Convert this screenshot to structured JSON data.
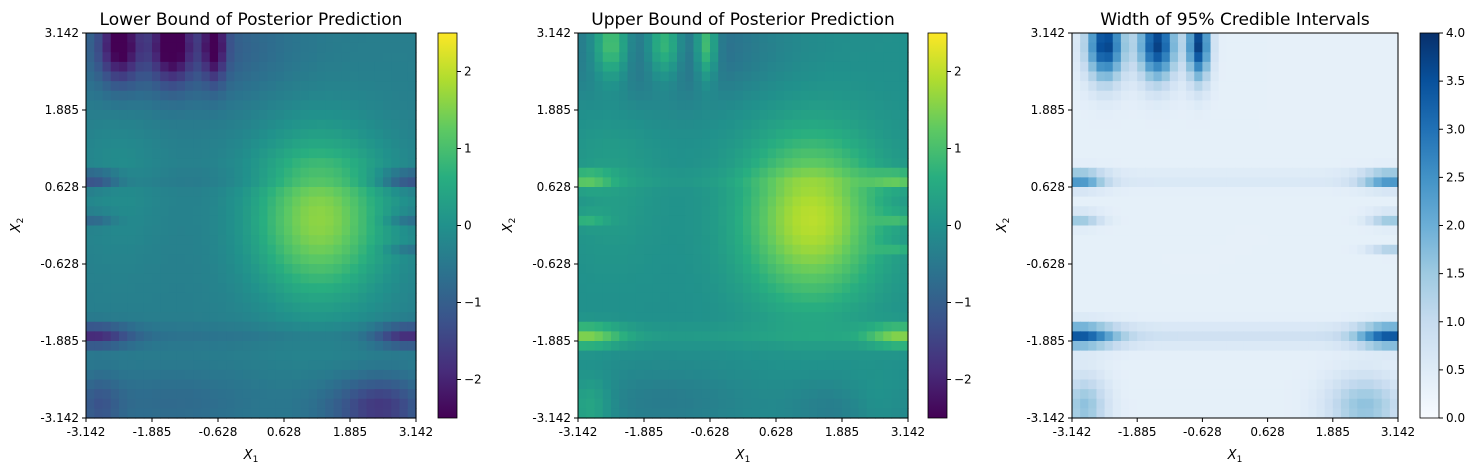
{
  "chart_data": [
    {
      "type": "heatmap",
      "title": "Lower Bound of Posterior Prediction",
      "xlabel": "X",
      "xlabel_sub": "1",
      "ylabel": "X",
      "ylabel_sub": "2",
      "xlim": [
        -3.142,
        3.142
      ],
      "ylim": [
        -3.142,
        3.142
      ],
      "xticks": [
        "-3.142",
        "-1.885",
        "-0.628",
        "0.628",
        "1.885",
        "3.142"
      ],
      "yticks": [
        "-3.142",
        "-1.885",
        "-0.628",
        "0.628",
        "1.885",
        "3.142"
      ],
      "colormap": "viridis",
      "colorbar": {
        "min": -2.5,
        "max": 2.5,
        "ticks": [
          "2",
          "1",
          "0",
          "−1",
          "−2"
        ],
        "tick_values": [
          2,
          1,
          0,
          -1,
          -2
        ]
      },
      "grid_resolution": 40,
      "value_range": [
        -2.5,
        2.5
      ]
    },
    {
      "type": "heatmap",
      "title": "Upper Bound of Posterior Prediction",
      "xlabel": "X",
      "xlabel_sub": "1",
      "ylabel": "X",
      "ylabel_sub": "2",
      "xlim": [
        -3.142,
        3.142
      ],
      "ylim": [
        -3.142,
        3.142
      ],
      "xticks": [
        "-3.142",
        "-1.885",
        "-0.628",
        "0.628",
        "1.885",
        "3.142"
      ],
      "yticks": [
        "-3.142",
        "-1.885",
        "-0.628",
        "0.628",
        "1.885",
        "3.142"
      ],
      "colormap": "viridis",
      "colorbar": {
        "min": -2.5,
        "max": 2.5,
        "ticks": [
          "2",
          "1",
          "0",
          "−1",
          "−2"
        ],
        "tick_values": [
          2,
          1,
          0,
          -1,
          -2
        ]
      },
      "grid_resolution": 40,
      "value_range": [
        -2.5,
        2.5
      ]
    },
    {
      "type": "heatmap",
      "title": "Width of 95% Credible Intervals",
      "xlabel": "X",
      "xlabel_sub": "1",
      "ylabel": "X",
      "ylabel_sub": "2",
      "xlim": [
        -3.142,
        3.142
      ],
      "ylim": [
        -3.142,
        3.142
      ],
      "xticks": [
        "-3.142",
        "-1.885",
        "-0.628",
        "0.628",
        "1.885",
        "3.142"
      ],
      "yticks": [
        "-3.142",
        "-1.885",
        "-0.628",
        "0.628",
        "1.885",
        "3.142"
      ],
      "colormap": "Blues",
      "colorbar": {
        "min": 0,
        "max": 4,
        "ticks": [
          "4.0",
          "3.5",
          "3.0",
          "2.5",
          "2.0",
          "1.5",
          "1.0",
          "0.5",
          "0.0"
        ],
        "tick_values": [
          4,
          3.5,
          3,
          2.5,
          2,
          1.5,
          1,
          0.5,
          0
        ]
      },
      "grid_resolution": 40,
      "value_range": [
        0,
        4
      ]
    }
  ]
}
